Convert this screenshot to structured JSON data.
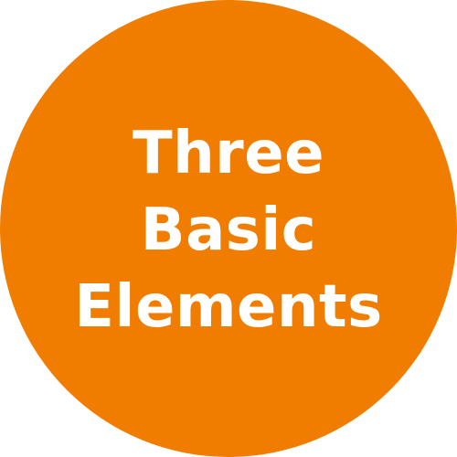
{
  "badge": {
    "lines": [
      "Three",
      "Basic",
      "Elements"
    ],
    "background_color": "#F07D00",
    "text_color": "#FFFFFF"
  }
}
